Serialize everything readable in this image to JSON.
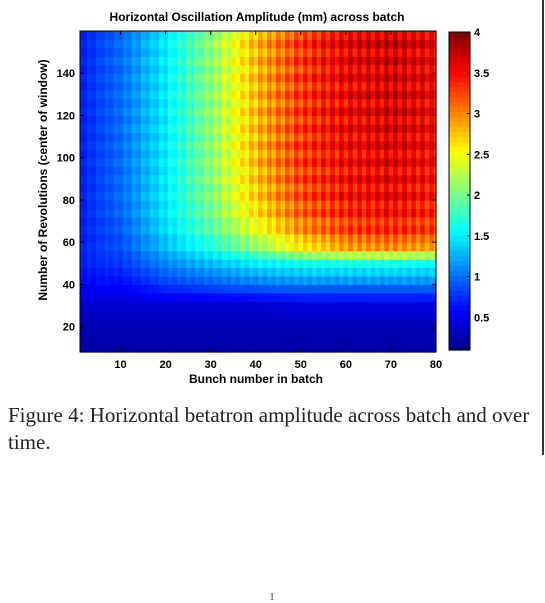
{
  "chart_data": {
    "type": "heatmap",
    "title": "Horizontal Oscillation Amplitude (mm) across batch",
    "xlabel": "Bunch number in batch",
    "ylabel": "Number of Revolutions (center of window)",
    "xlim": [
      1,
      80
    ],
    "ylim": [
      8,
      160
    ],
    "xticks": [
      10,
      20,
      30,
      40,
      50,
      60,
      70,
      80
    ],
    "yticks": [
      20,
      40,
      60,
      80,
      100,
      120,
      140
    ],
    "colorbar": {
      "label_unit": "mm",
      "range": [
        0.1,
        4
      ],
      "ticks": [
        0.5,
        1,
        1.5,
        2,
        2.5,
        3,
        3.5,
        4
      ],
      "colormap": "jet"
    },
    "x_bunch_sample": [
      1,
      10,
      20,
      30,
      40,
      50,
      60,
      70,
      80
    ],
    "y_revolution_sample": [
      10,
      20,
      30,
      40,
      50,
      60,
      70,
      80,
      100,
      120,
      140,
      160
    ],
    "z_amplitude_mm_grid": [
      [
        0.25,
        0.25,
        0.25,
        0.25,
        0.25,
        0.25,
        0.25,
        0.25,
        0.25
      ],
      [
        0.3,
        0.3,
        0.3,
        0.3,
        0.3,
        0.3,
        0.3,
        0.3,
        0.3
      ],
      [
        0.4,
        0.4,
        0.4,
        0.4,
        0.4,
        0.45,
        0.45,
        0.45,
        0.45
      ],
      [
        0.6,
        0.6,
        0.8,
        0.9,
        1.0,
        1.05,
        1.05,
        1.05,
        1.05
      ],
      [
        0.7,
        0.8,
        1.1,
        1.3,
        1.5,
        1.6,
        1.65,
        1.65,
        1.6
      ],
      [
        0.7,
        0.9,
        1.35,
        1.75,
        2.2,
        2.75,
        3.1,
        3.2,
        3.1
      ],
      [
        0.7,
        0.95,
        1.45,
        1.95,
        2.55,
        3.05,
        3.3,
        3.4,
        3.3
      ],
      [
        0.7,
        1.0,
        1.5,
        2.05,
        2.7,
        3.2,
        3.45,
        3.55,
        3.4
      ],
      [
        0.7,
        1.0,
        1.5,
        2.1,
        2.8,
        3.3,
        3.5,
        3.6,
        3.5
      ],
      [
        0.7,
        1.0,
        1.5,
        2.1,
        2.8,
        3.3,
        3.55,
        3.65,
        3.55
      ],
      [
        0.7,
        1.0,
        1.5,
        2.1,
        2.8,
        3.3,
        3.55,
        3.65,
        3.55
      ],
      [
        0.7,
        1.0,
        1.5,
        2.1,
        2.8,
        3.3,
        3.6,
        3.7,
        3.6
      ]
    ]
  },
  "caption": "Figure 4: Horizontal betatron amplitude across batch and over time.",
  "page_number": "1"
}
